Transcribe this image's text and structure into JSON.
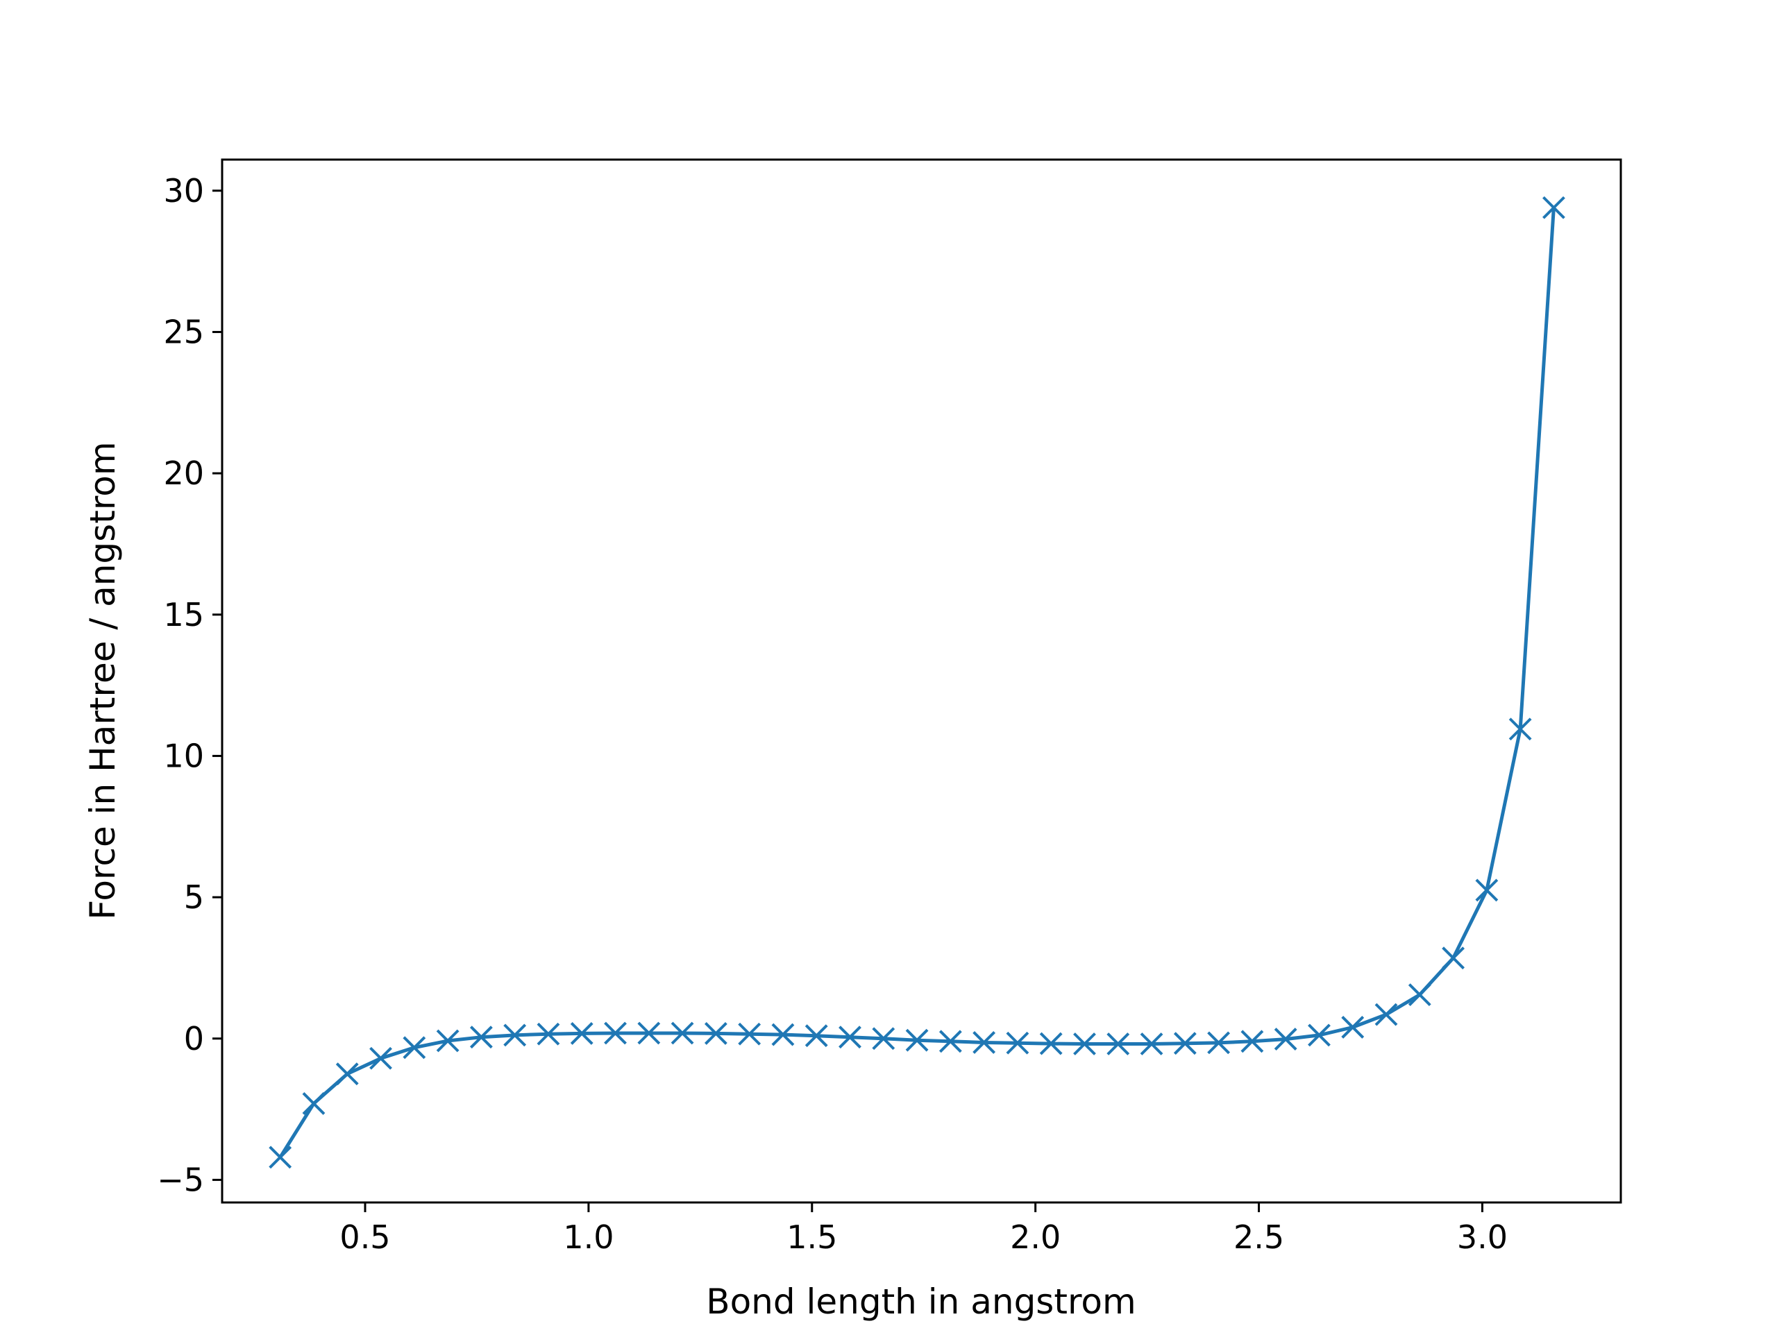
{
  "chart_data": {
    "type": "line",
    "title": "",
    "xlabel": "Bond length in angstrom",
    "ylabel": "Force in Hartree / angstrom",
    "xlim": [
      0.18,
      3.31
    ],
    "ylim": [
      -5.8,
      31.1
    ],
    "xticks": [
      0.5,
      1.0,
      1.5,
      2.0,
      2.5,
      3.0
    ],
    "xtick_labels": [
      "0.5",
      "1.0",
      "1.5",
      "2.0",
      "2.5",
      "3.0"
    ],
    "yticks": [
      -5,
      0,
      5,
      10,
      15,
      20,
      25,
      30
    ],
    "ytick_labels": [
      "−5",
      "0",
      "5",
      "10",
      "15",
      "20",
      "25",
      "30"
    ],
    "grid": false,
    "marker": "x",
    "color": "#1f77b4",
    "series": [
      {
        "x": [
          0.31,
          0.385,
          0.46,
          0.535,
          0.61,
          0.685,
          0.76,
          0.835,
          0.91,
          0.985,
          1.06,
          1.135,
          1.21,
          1.285,
          1.36,
          1.435,
          1.51,
          1.585,
          1.66,
          1.735,
          1.81,
          1.885,
          1.96,
          2.035,
          2.11,
          2.185,
          2.26,
          2.335,
          2.41,
          2.485,
          2.56,
          2.635,
          2.71,
          2.785,
          2.86,
          2.935,
          3.01,
          3.085,
          3.16
        ],
        "y": [
          -4.2,
          -2.3,
          -1.25,
          -0.7,
          -0.32,
          -0.08,
          0.05,
          0.12,
          0.16,
          0.18,
          0.19,
          0.19,
          0.19,
          0.18,
          0.16,
          0.14,
          0.1,
          0.05,
          0.0,
          -0.06,
          -0.1,
          -0.14,
          -0.16,
          -0.18,
          -0.19,
          -0.19,
          -0.19,
          -0.17,
          -0.15,
          -0.1,
          -0.02,
          0.12,
          0.4,
          0.85,
          1.55,
          2.85,
          5.25,
          10.95,
          29.4
        ]
      }
    ]
  }
}
